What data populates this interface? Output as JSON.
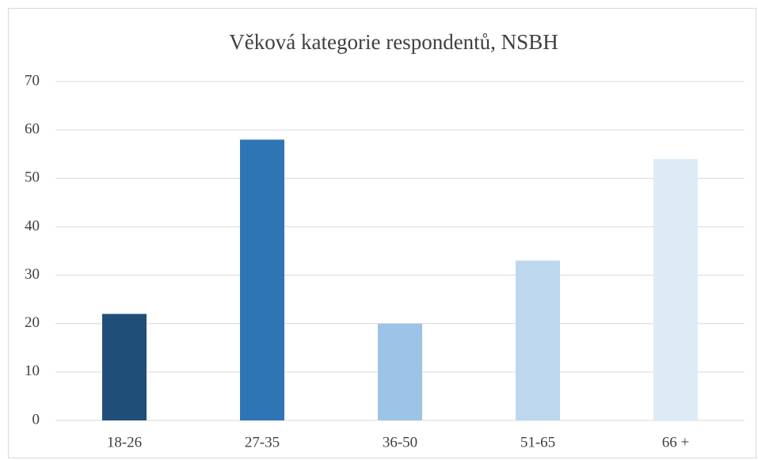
{
  "chart_data": {
    "type": "bar",
    "title": "Věková kategorie respondentů, NSBH",
    "categories": [
      "18-26",
      "27-35",
      "36-50",
      "51-65",
      "66 +"
    ],
    "values": [
      22,
      58,
      20,
      33,
      54
    ],
    "colors": [
      "#1f4e79",
      "#2e75b6",
      "#9dc3e6",
      "#bdd7ee",
      "#deebf7"
    ],
    "ylim": [
      0,
      70
    ],
    "yticks": [
      0,
      10,
      20,
      30,
      40,
      50,
      60,
      70
    ],
    "grid": true
  }
}
